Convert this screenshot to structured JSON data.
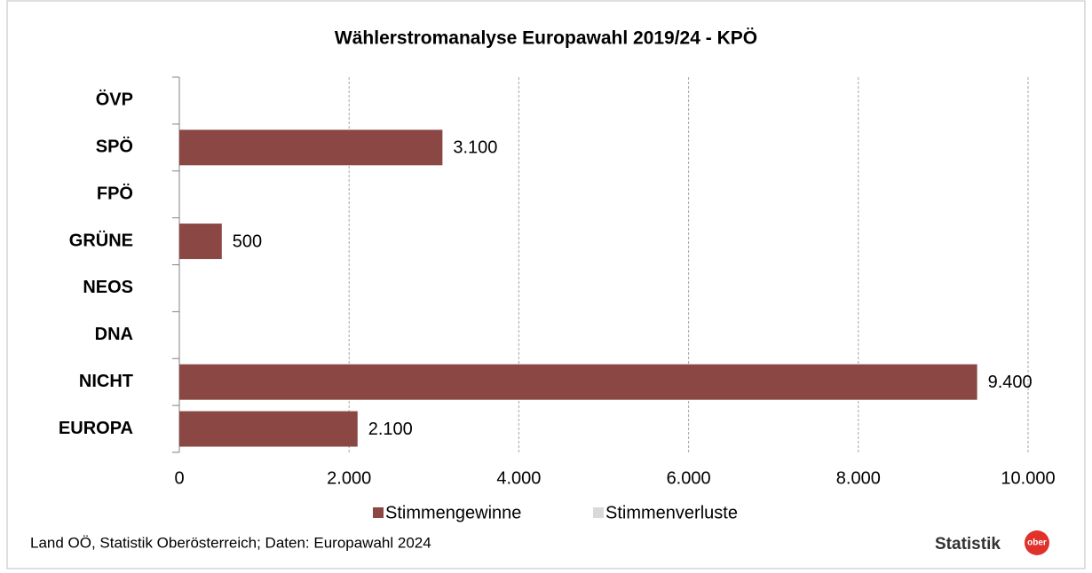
{
  "chart_data": {
    "type": "bar",
    "orientation": "horizontal",
    "title": "Wählerstromanalyse Europawahl 2019/24 - KPÖ",
    "categories": [
      "ÖVP",
      "SPÖ",
      "FPÖ",
      "GRÜNE",
      "NEOS",
      "DNA",
      "NICHT",
      "EUROPA"
    ],
    "series": [
      {
        "name": "Stimmengewinne",
        "color": "#8b4744",
        "values": [
          null,
          3100,
          null,
          500,
          null,
          null,
          9400,
          2100
        ],
        "value_labels": [
          null,
          "3.100",
          null,
          "500",
          null,
          null,
          "9.400",
          "2.100"
        ]
      },
      {
        "name": "Stimmenverluste",
        "color": "#d9d9d9",
        "values": [
          null,
          null,
          null,
          null,
          null,
          null,
          null,
          null
        ]
      }
    ],
    "xlim": [
      0,
      10000
    ],
    "xticks": [
      0,
      {
        "value": 2000,
        "label": "2.000"
      },
      {
        "value": 4000,
        "label": "4.000"
      },
      {
        "value": 6000,
        "label": "6.000"
      },
      {
        "value": 8000,
        "label": "8.000"
      },
      {
        "value": 10000,
        "label": "10.000"
      }
    ],
    "grid": true,
    "legend": "bottom",
    "source": "Land OÖ, Statistik Oberösterreich; Daten: Europawahl 2024",
    "logo_text": "Statistik",
    "logo_badge": "ober"
  }
}
